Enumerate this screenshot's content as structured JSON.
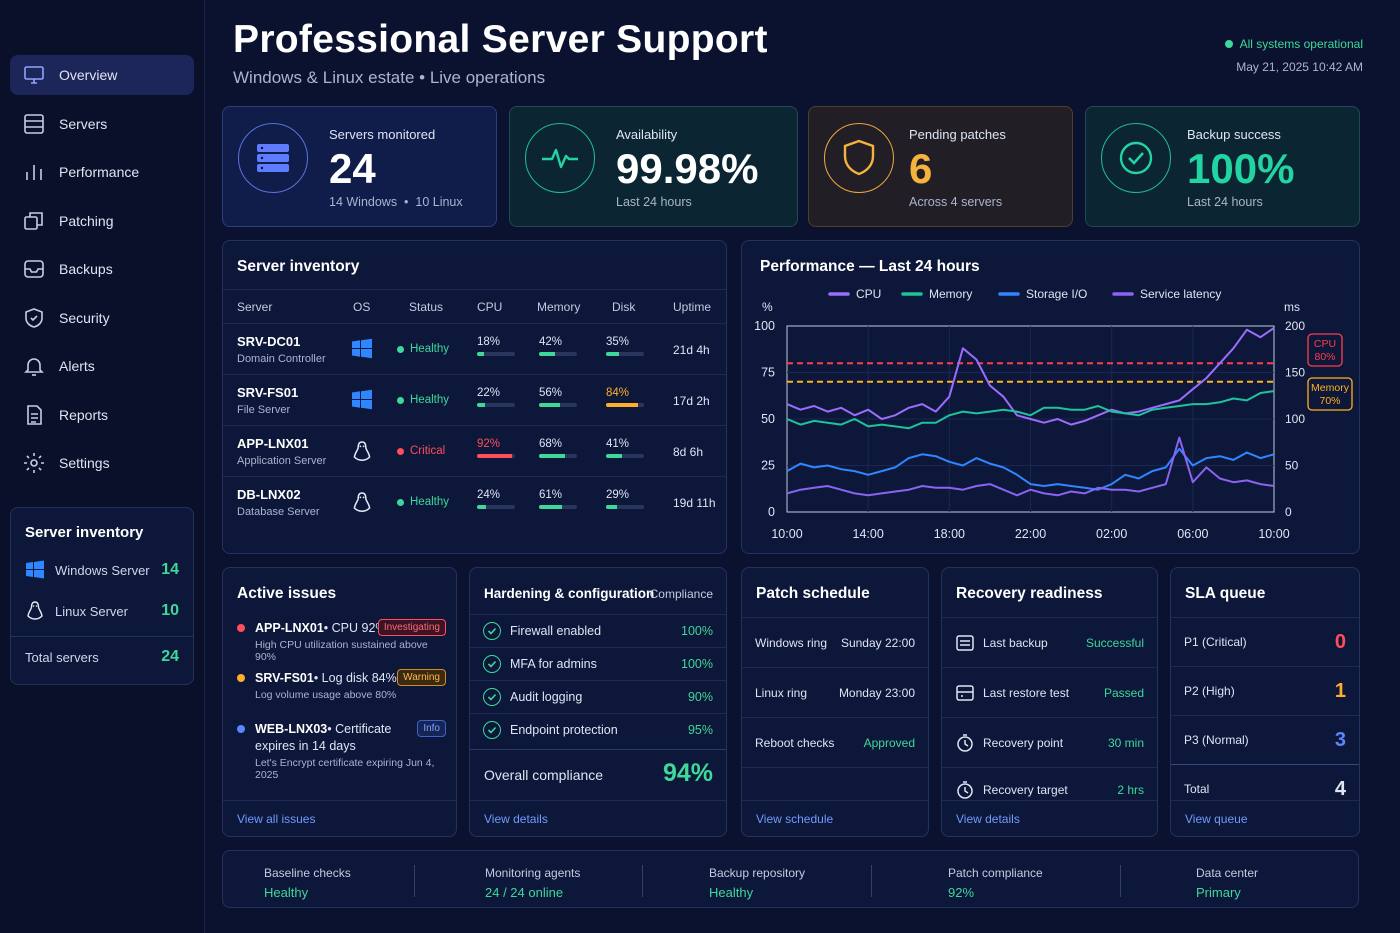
{
  "header": {
    "title": "Professional Server Support",
    "subtitle": "Windows & Linux estate • Live operations",
    "status": "All systems operational",
    "datetime": "May 21, 2025  10:42 AM"
  },
  "sidebar": {
    "items": [
      {
        "label": "Overview",
        "icon": "monitor-icon"
      },
      {
        "label": "Servers",
        "icon": "server-icon"
      },
      {
        "label": "Performance",
        "icon": "bar-chart-icon"
      },
      {
        "label": "Patching",
        "icon": "patch-icon"
      },
      {
        "label": "Backups",
        "icon": "inbox-icon"
      },
      {
        "label": "Security",
        "icon": "shield-icon"
      },
      {
        "label": "Alerts",
        "icon": "bell-icon"
      },
      {
        "label": "Reports",
        "icon": "document-icon"
      },
      {
        "label": "Settings",
        "icon": "gear-icon"
      }
    ],
    "inventory": {
      "title": "Server inventory",
      "windows_label": "Windows Server",
      "windows_count": "14",
      "linux_label": "Linux Server",
      "linux_count": "10",
      "total_label": "Total servers",
      "total_count": "24"
    }
  },
  "kpis": [
    {
      "label": "Servers monitored",
      "value": "24",
      "sub1": "14 Windows",
      "sub2": "10 Linux"
    },
    {
      "label": "Availability",
      "value": "99.98%",
      "sub": "Last 24 hours"
    },
    {
      "label": "Pending patches",
      "value": "6",
      "sub": "Across 4 servers"
    },
    {
      "label": "Backup success",
      "value": "100%",
      "sub": "Last 24 hours"
    }
  ],
  "inventory": {
    "title": "Server inventory",
    "columns": [
      "Server",
      "OS",
      "Status",
      "CPU",
      "Memory",
      "Disk",
      "Uptime"
    ],
    "rows": [
      {
        "name": "SRV-DC01",
        "role": "Domain Controller",
        "os": "windows",
        "status": "Healthy",
        "cpu": "18%",
        "cpu_v": 0.18,
        "mem": "42%",
        "mem_v": 0.42,
        "disk": "35%",
        "disk_v": 0.35,
        "uptime": "21d 4h"
      },
      {
        "name": "SRV-FS01",
        "role": "File Server",
        "os": "windows",
        "status": "Healthy",
        "cpu": "22%",
        "cpu_v": 0.22,
        "mem": "56%",
        "mem_v": 0.56,
        "disk": "84%",
        "disk_v": 0.84,
        "uptime": "17d 2h"
      },
      {
        "name": "APP-LNX01",
        "role": "Application Server",
        "os": "linux",
        "status": "Critical",
        "cpu": "92%",
        "cpu_v": 0.92,
        "mem": "68%",
        "mem_v": 0.68,
        "disk": "41%",
        "disk_v": 0.41,
        "uptime": "8d 6h"
      },
      {
        "name": "DB-LNX02",
        "role": "Database Server",
        "os": "linux",
        "status": "Healthy",
        "cpu": "24%",
        "cpu_v": 0.24,
        "mem": "61%",
        "mem_v": 0.61,
        "disk": "29%",
        "disk_v": 0.29,
        "uptime": "19d 11h"
      }
    ]
  },
  "colors": {
    "healthy": "#3ed89a",
    "critical": "#ff4d5a",
    "warning": "#ffae2b",
    "cpu": "#9b6cff",
    "memory": "#1fc39a",
    "storage": "#2f86ff",
    "latency": "#8a63f0"
  },
  "chart_data": {
    "type": "line",
    "title": "Performance — Last 24 hours",
    "ylabel": "%",
    "y2label": "ms",
    "ylim": [
      0,
      100
    ],
    "y2lim": [
      0,
      200
    ],
    "x_ticks": [
      "10:00",
      "14:00",
      "18:00",
      "22:00",
      "02:00",
      "06:00",
      "10:00"
    ],
    "y_ticks": [
      "100",
      "75",
      "50",
      "25",
      "0"
    ],
    "y2_ticks": [
      "200",
      "150",
      "100",
      "50",
      "0"
    ],
    "thresholds": [
      {
        "label": "CPU",
        "value_label": "80%",
        "value": 80,
        "color": "#ff3d4d"
      },
      {
        "label": "Memory",
        "value_label": "70%",
        "value": 70,
        "color": "#ffb020"
      }
    ],
    "series": [
      {
        "name": "CPU",
        "color": "#9b6cff",
        "values": [
          58,
          55,
          57,
          54,
          56,
          52,
          55,
          50,
          52,
          56,
          58,
          54,
          62,
          88,
          82,
          68,
          62,
          52,
          50,
          48,
          50,
          47,
          49,
          52,
          55,
          53,
          54,
          56,
          58,
          60,
          66,
          72,
          80,
          88,
          98,
          94,
          99
        ]
      },
      {
        "name": "Memory",
        "color": "#1fc39a",
        "values": [
          50,
          47,
          49,
          48,
          47,
          50,
          46,
          47,
          46,
          45,
          48,
          48,
          52,
          54,
          53,
          54,
          55,
          54,
          52,
          56,
          56,
          55,
          55,
          57,
          54,
          53,
          52,
          55,
          56,
          57,
          58,
          58,
          59,
          61,
          60,
          64,
          65
        ]
      },
      {
        "name": "Storage I/O",
        "color": "#2f86ff",
        "values": [
          22,
          26,
          24,
          25,
          23,
          22,
          20,
          22,
          24,
          29,
          31,
          30,
          27,
          25,
          29,
          26,
          24,
          20,
          15,
          14,
          15,
          14,
          13,
          12,
          15,
          20,
          18,
          22,
          24,
          34,
          25,
          29,
          30,
          28,
          32,
          29,
          31
        ]
      },
      {
        "name": "Service latency",
        "color": "#8a63f0",
        "values": [
          10,
          12,
          13,
          14,
          12,
          10,
          9,
          10,
          11,
          12,
          14,
          13,
          13,
          12,
          14,
          15,
          12,
          9,
          12,
          10,
          9,
          11,
          10,
          13,
          12,
          12,
          11,
          13,
          15,
          40,
          16,
          24,
          18,
          16,
          17,
          15,
          14
        ]
      }
    ]
  },
  "issues": {
    "title": "Active issues",
    "items": [
      {
        "host": "APP-LNX01",
        "text": " • CPU 92%",
        "tag": "Investigating",
        "detail": "High CPU utilization sustained above 90%",
        "level": "critical"
      },
      {
        "host": "SRV-FS01",
        "text": " • Log disk 84%",
        "tag": "Warning",
        "detail": "Log volume usage above 80%",
        "level": "warning"
      },
      {
        "host": "WEB-LNX03",
        "text": " • Certificate",
        "text2": "expires in 14 days",
        "tag": "Info",
        "detail": "Let's Encrypt certificate expiring Jun 4, 2025",
        "level": "info"
      }
    ],
    "link": "View all issues"
  },
  "hardening": {
    "title": "Hardening & configuration",
    "right": "Compliance",
    "items": [
      {
        "label": "Firewall enabled",
        "value": "100%"
      },
      {
        "label": "MFA for admins",
        "value": "100%"
      },
      {
        "label": "Audit logging",
        "value": "90%"
      },
      {
        "label": "Endpoint protection",
        "value": "95%"
      }
    ],
    "overall_label": "Overall compliance",
    "overall_value": "94%",
    "link": "View details"
  },
  "patch": {
    "title": "Patch schedule",
    "items": [
      {
        "label": "Windows ring",
        "value": "Sunday 22:00"
      },
      {
        "label": "Linux ring",
        "value": "Monday 23:00"
      },
      {
        "label": "Reboot checks",
        "value": "Approved"
      }
    ],
    "link": "View schedule"
  },
  "recovery": {
    "title": "Recovery readiness",
    "items": [
      {
        "label": "Last backup",
        "value": "Successful"
      },
      {
        "label": "Last restore test",
        "value": "Passed"
      },
      {
        "label": "Recovery point",
        "value": "30 min"
      },
      {
        "label": "Recovery target",
        "value": "2 hrs"
      }
    ],
    "link": "View details"
  },
  "sla": {
    "title": "SLA queue",
    "items": [
      {
        "label": "P1 (Critical)",
        "value": "0"
      },
      {
        "label": "P2 (High)",
        "value": "1"
      },
      {
        "label": "P3 (Normal)",
        "value": "3"
      },
      {
        "label": "Total",
        "value": "4"
      }
    ],
    "link": "View queue"
  },
  "bottom": [
    {
      "label": "Baseline checks",
      "value": "Healthy"
    },
    {
      "label": "Monitoring agents",
      "value": "24 / 24 online"
    },
    {
      "label": "Backup repository",
      "value": "Healthy"
    },
    {
      "label": "Patch compliance",
      "value": "92%"
    },
    {
      "label": "Data center",
      "value": "Primary"
    }
  ]
}
